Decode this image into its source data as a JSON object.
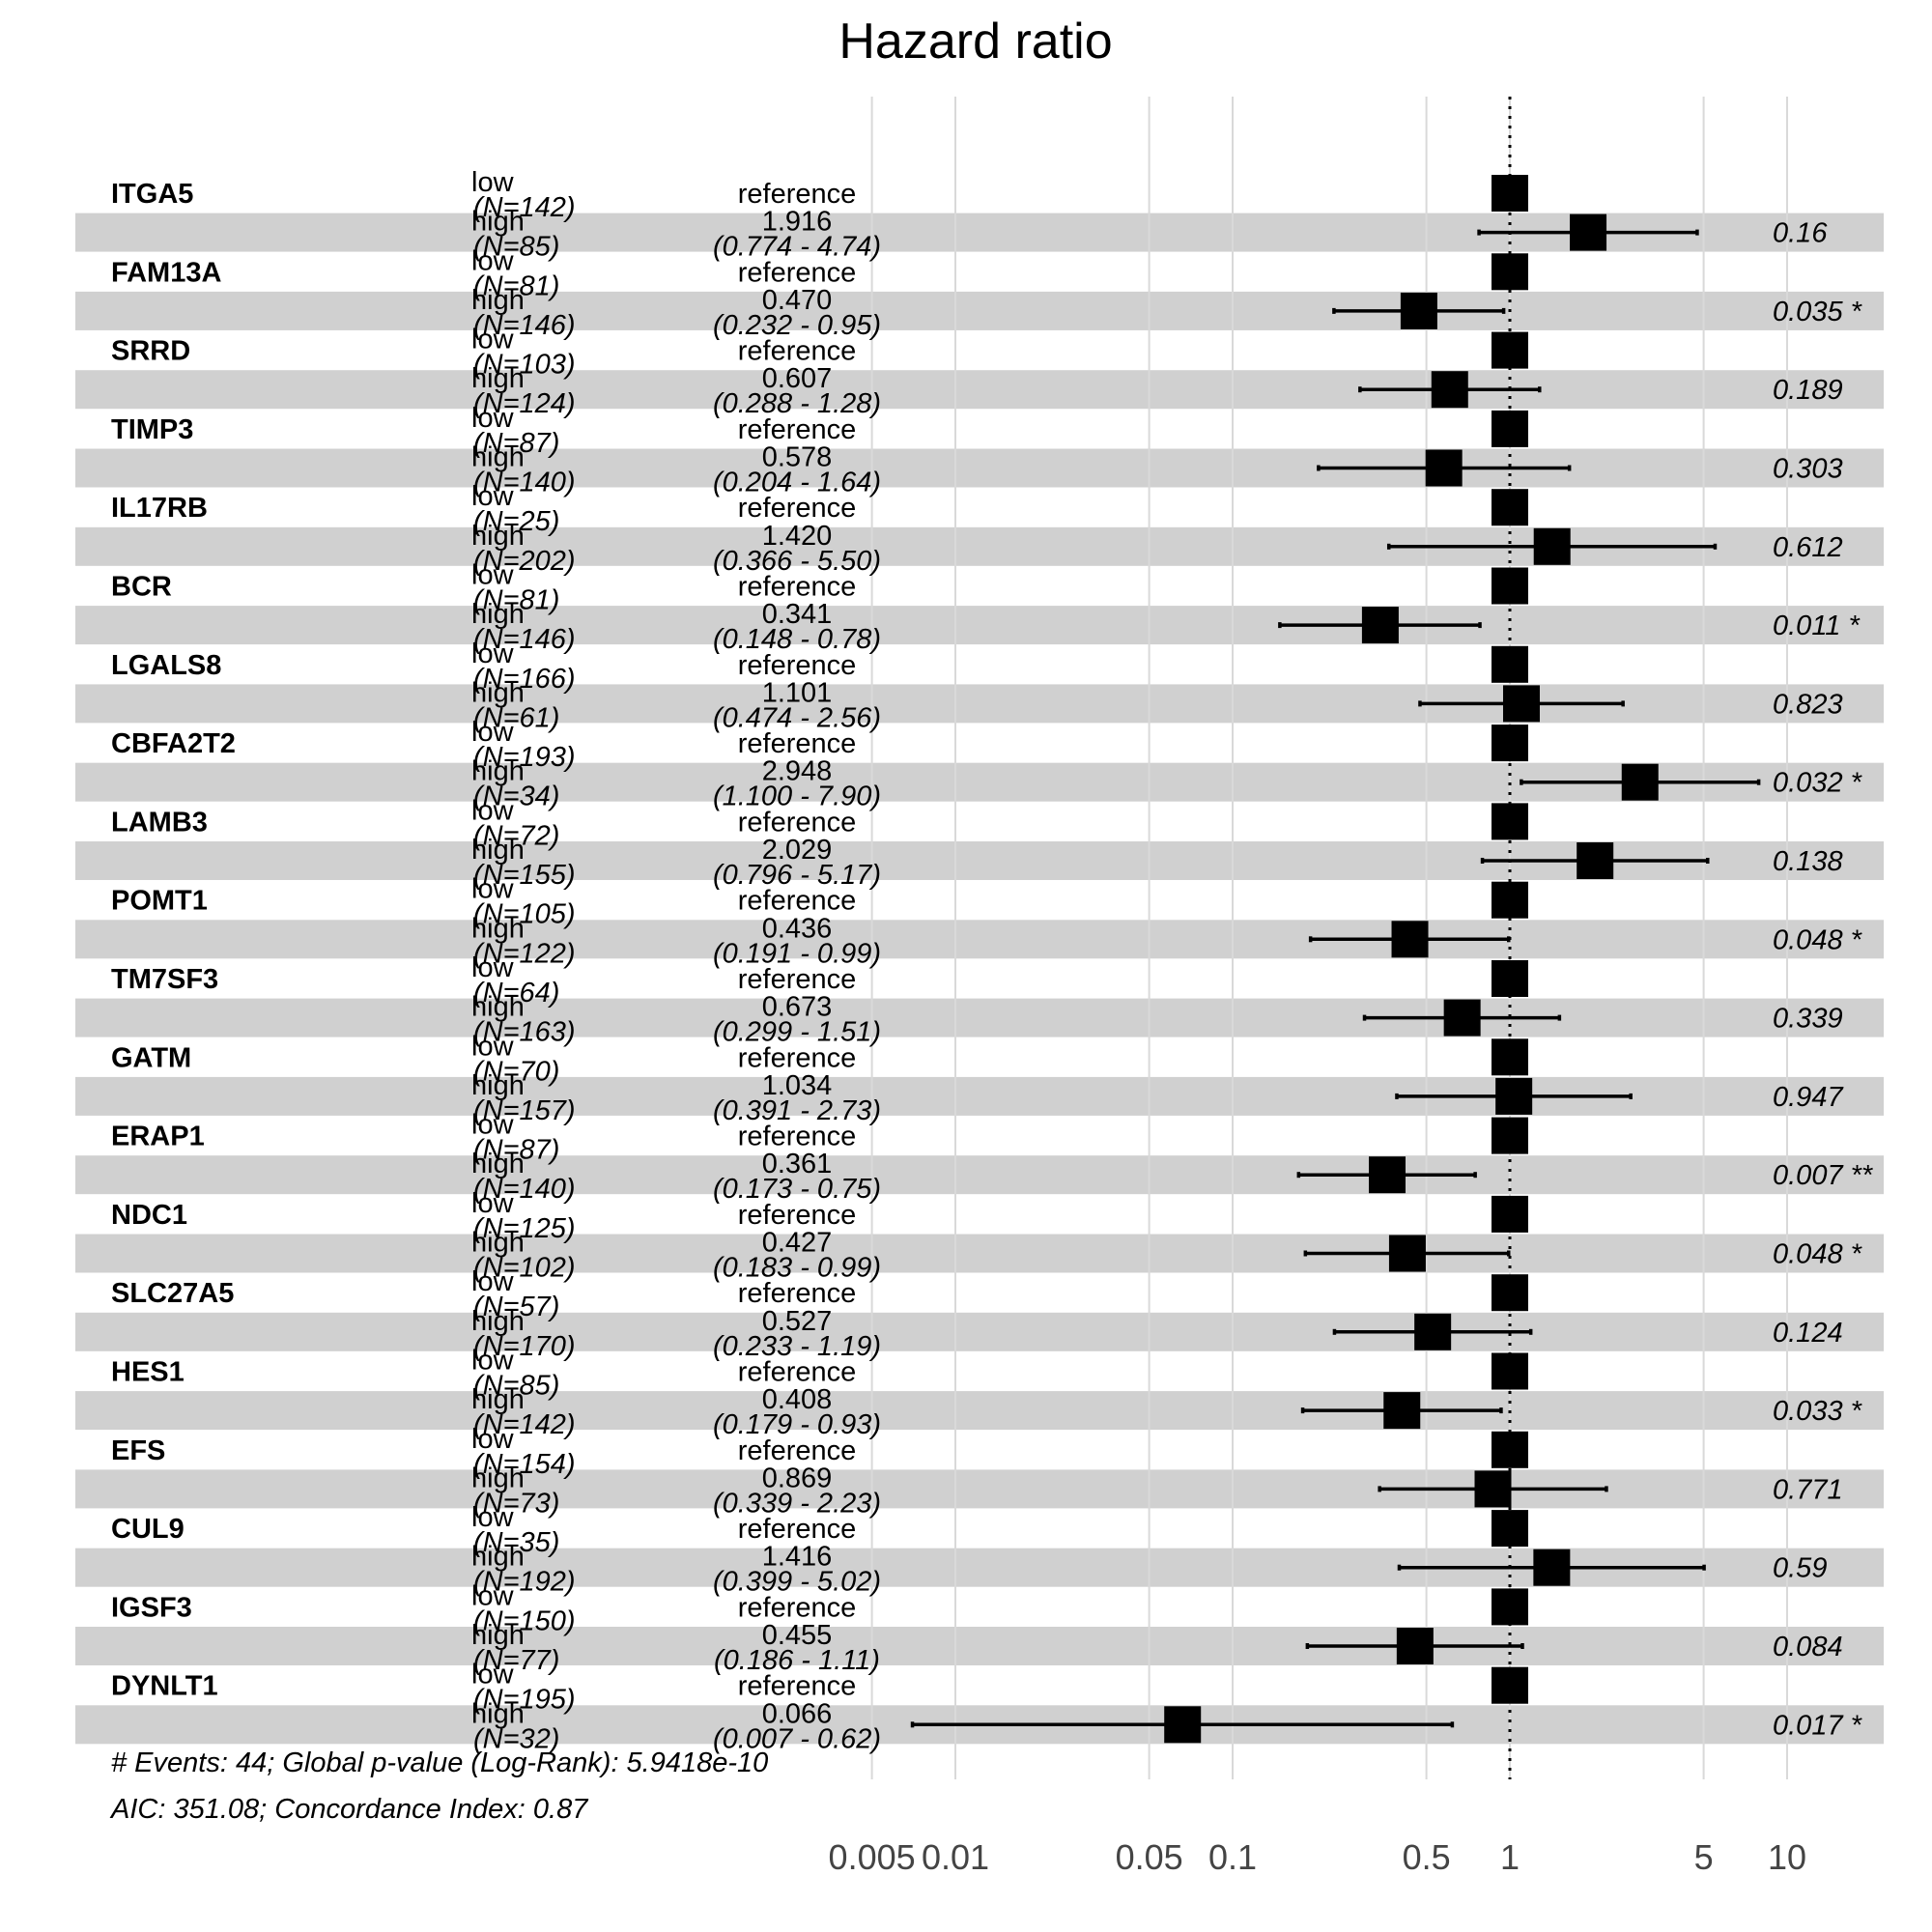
{
  "chart_data": {
    "type": "forest",
    "title": "Hazard ratio",
    "x_scale": "log",
    "xlim": [
      0.0035,
      25
    ],
    "x_ticks": [
      0.005,
      0.01,
      0.05,
      0.1,
      0.5,
      1,
      5,
      10
    ],
    "x_tick_labels": [
      "0.005",
      "0.01",
      "0.05",
      "0.1",
      "0.5",
      "1",
      "5",
      "10"
    ],
    "reference_line": 1,
    "reference_label": "reference",
    "rows": [
      {
        "gene": "ITGA5",
        "low_label": "low",
        "low_n": "(N=142)",
        "high_label": "high",
        "high_n": "(N=85)",
        "hr": 1.916,
        "hr_text": "1.916",
        "ci_lo": 0.774,
        "ci_hi": 4.74,
        "ci_text": "(0.774 - 4.74)",
        "p_text": "0.16"
      },
      {
        "gene": "FAM13A",
        "low_label": "low",
        "low_n": "(N=81)",
        "high_label": "high",
        "high_n": "(N=146)",
        "hr": 0.47,
        "hr_text": "0.470",
        "ci_lo": 0.232,
        "ci_hi": 0.95,
        "ci_text": "(0.232 - 0.95)",
        "p_text": "0.035 *"
      },
      {
        "gene": "SRRD",
        "low_label": "low",
        "low_n": "(N=103)",
        "high_label": "high",
        "high_n": "(N=124)",
        "hr": 0.607,
        "hr_text": "0.607",
        "ci_lo": 0.288,
        "ci_hi": 1.28,
        "ci_text": "(0.288 - 1.28)",
        "p_text": "0.189"
      },
      {
        "gene": "TIMP3",
        "low_label": "low",
        "low_n": "(N=87)",
        "high_label": "high",
        "high_n": "(N=140)",
        "hr": 0.578,
        "hr_text": "0.578",
        "ci_lo": 0.204,
        "ci_hi": 1.64,
        "ci_text": "(0.204 - 1.64)",
        "p_text": "0.303"
      },
      {
        "gene": "IL17RB",
        "low_label": "low",
        "low_n": "(N=25)",
        "high_label": "high",
        "high_n": "(N=202)",
        "hr": 1.42,
        "hr_text": "1.420",
        "ci_lo": 0.366,
        "ci_hi": 5.5,
        "ci_text": "(0.366 - 5.50)",
        "p_text": "0.612"
      },
      {
        "gene": "BCR",
        "low_label": "low",
        "low_n": "(N=81)",
        "high_label": "high",
        "high_n": "(N=146)",
        "hr": 0.341,
        "hr_text": "0.341",
        "ci_lo": 0.148,
        "ci_hi": 0.78,
        "ci_text": "(0.148 - 0.78)",
        "p_text": "0.011 *"
      },
      {
        "gene": "LGALS8",
        "low_label": "low",
        "low_n": "(N=166)",
        "high_label": "high",
        "high_n": "(N=61)",
        "hr": 1.101,
        "hr_text": "1.101",
        "ci_lo": 0.474,
        "ci_hi": 2.56,
        "ci_text": "(0.474 - 2.56)",
        "p_text": "0.823"
      },
      {
        "gene": "CBFA2T2",
        "low_label": "low",
        "low_n": "(N=193)",
        "high_label": "high",
        "high_n": "(N=34)",
        "hr": 2.948,
        "hr_text": "2.948",
        "ci_lo": 1.1,
        "ci_hi": 7.9,
        "ci_text": "(1.100 - 7.90)",
        "p_text": "0.032 *"
      },
      {
        "gene": "LAMB3",
        "low_label": "low",
        "low_n": "(N=72)",
        "high_label": "high",
        "high_n": "(N=155)",
        "hr": 2.029,
        "hr_text": "2.029",
        "ci_lo": 0.796,
        "ci_hi": 5.17,
        "ci_text": "(0.796 - 5.17)",
        "p_text": "0.138"
      },
      {
        "gene": "POMT1",
        "low_label": "low",
        "low_n": "(N=105)",
        "high_label": "high",
        "high_n": "(N=122)",
        "hr": 0.436,
        "hr_text": "0.436",
        "ci_lo": 0.191,
        "ci_hi": 0.99,
        "ci_text": "(0.191 - 0.99)",
        "p_text": "0.048 *"
      },
      {
        "gene": "TM7SF3",
        "low_label": "low",
        "low_n": "(N=64)",
        "high_label": "high",
        "high_n": "(N=163)",
        "hr": 0.673,
        "hr_text": "0.673",
        "ci_lo": 0.299,
        "ci_hi": 1.51,
        "ci_text": "(0.299 - 1.51)",
        "p_text": "0.339"
      },
      {
        "gene": "GATM",
        "low_label": "low",
        "low_n": "(N=70)",
        "high_label": "high",
        "high_n": "(N=157)",
        "hr": 1.034,
        "hr_text": "1.034",
        "ci_lo": 0.391,
        "ci_hi": 2.73,
        "ci_text": "(0.391 - 2.73)",
        "p_text": "0.947"
      },
      {
        "gene": "ERAP1",
        "low_label": "low",
        "low_n": "(N=87)",
        "high_label": "high",
        "high_n": "(N=140)",
        "hr": 0.361,
        "hr_text": "0.361",
        "ci_lo": 0.173,
        "ci_hi": 0.75,
        "ci_text": "(0.173 - 0.75)",
        "p_text": "0.007 **"
      },
      {
        "gene": "NDC1",
        "low_label": "low",
        "low_n": "(N=125)",
        "high_label": "high",
        "high_n": "(N=102)",
        "hr": 0.427,
        "hr_text": "0.427",
        "ci_lo": 0.183,
        "ci_hi": 0.99,
        "ci_text": "(0.183 - 0.99)",
        "p_text": "0.048 *"
      },
      {
        "gene": "SLC27A5",
        "low_label": "low",
        "low_n": "(N=57)",
        "high_label": "high",
        "high_n": "(N=170)",
        "hr": 0.527,
        "hr_text": "0.527",
        "ci_lo": 0.233,
        "ci_hi": 1.19,
        "ci_text": "(0.233 - 1.19)",
        "p_text": "0.124"
      },
      {
        "gene": "HES1",
        "low_label": "low",
        "low_n": "(N=85)",
        "high_label": "high",
        "high_n": "(N=142)",
        "hr": 0.408,
        "hr_text": "0.408",
        "ci_lo": 0.179,
        "ci_hi": 0.93,
        "ci_text": "(0.179 - 0.93)",
        "p_text": "0.033 *"
      },
      {
        "gene": "EFS",
        "low_label": "low",
        "low_n": "(N=154)",
        "high_label": "high",
        "high_n": "(N=73)",
        "hr": 0.869,
        "hr_text": "0.869",
        "ci_lo": 0.339,
        "ci_hi": 2.23,
        "ci_text": "(0.339 - 2.23)",
        "p_text": "0.771"
      },
      {
        "gene": "CUL9",
        "low_label": "low",
        "low_n": "(N=35)",
        "high_label": "high",
        "high_n": "(N=192)",
        "hr": 1.416,
        "hr_text": "1.416",
        "ci_lo": 0.399,
        "ci_hi": 5.02,
        "ci_text": "(0.399 - 5.02)",
        "p_text": "0.59"
      },
      {
        "gene": "IGSF3",
        "low_label": "low",
        "low_n": "(N=150)",
        "high_label": "high",
        "high_n": "(N=77)",
        "hr": 0.455,
        "hr_text": "0.455",
        "ci_lo": 0.186,
        "ci_hi": 1.11,
        "ci_text": "(0.186 - 1.11)",
        "p_text": "0.084"
      },
      {
        "gene": "DYNLT1",
        "low_label": "low",
        "low_n": "(N=195)",
        "high_label": "high",
        "high_n": "(N=32)",
        "hr": 0.066,
        "hr_text": "0.066",
        "ci_lo": 0.007,
        "ci_hi": 0.62,
        "ci_text": "(0.007 - 0.62)",
        "p_text": "0.017 *"
      }
    ],
    "footnote_1": "# Events: 44; Global p-value (Log-Rank): 5.9418e-10",
    "footnote_2": "AIC: 351.08; Concordance Index: 0.87",
    "colors": {
      "stripe": "#d0d0d0",
      "grid": "#d9d9d9",
      "marker": "#000000",
      "tick_text": "#444444"
    }
  }
}
